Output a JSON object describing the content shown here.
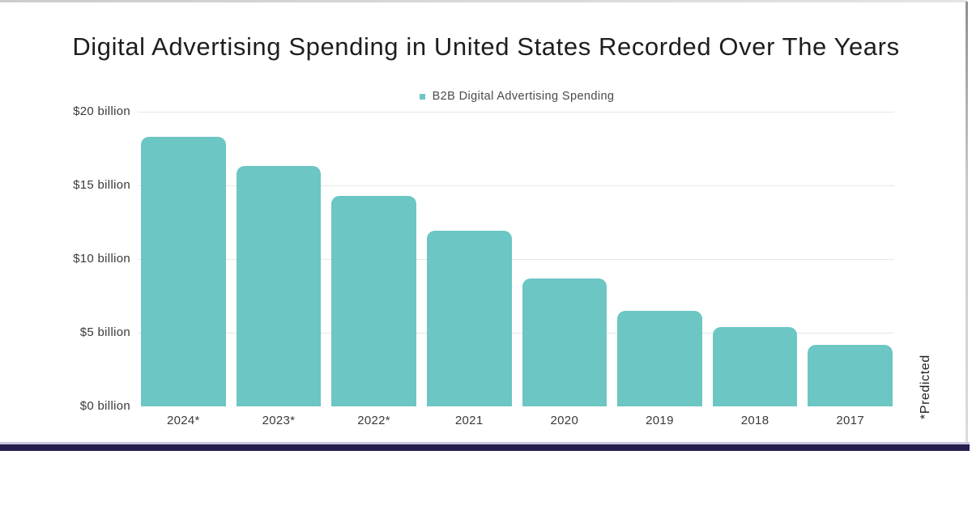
{
  "title": "Digital Advertising Spending in United States Recorded Over The Years",
  "legend": {
    "label": "B2B Digital Advertising Spending",
    "marker_color": "#6cc6c3"
  },
  "footnote": "*Predicted",
  "colors": {
    "bar": "#6cc6c3",
    "bottom_accent_bar": "#261e4e",
    "bottom_accent_top_edge": "#cbc6df",
    "gridline": "#e7e7e7",
    "title_text": "#1e1e1e",
    "axis_text": "#3a3a3a"
  },
  "chart_data": {
    "type": "bar",
    "title": "Digital Advertising Spending in United States Recorded Over The Years",
    "categories": [
      "2024*",
      "2023*",
      "2022*",
      "2021",
      "2020",
      "2019",
      "2018",
      "2017"
    ],
    "series": [
      {
        "name": "B2B Digital Advertising Spending",
        "values": [
          18.3,
          16.3,
          14.3,
          11.9,
          8.7,
          6.5,
          5.4,
          4.2
        ]
      }
    ],
    "unit": "USD billions",
    "xlabel": "",
    "ylabel": "",
    "ylim": [
      0,
      20
    ],
    "yticks": [
      {
        "value": 20,
        "label": "$20 billion"
      },
      {
        "value": 15,
        "label": "$15 billion"
      },
      {
        "value": 10,
        "label": "$10 billion"
      },
      {
        "value": 5,
        "label": "$5 billion"
      },
      {
        "value": 0,
        "label": "$0 billion"
      }
    ],
    "grid": true,
    "legend_position": "top-center",
    "bar_color": "#6cc6c3",
    "annotation": "*Predicted"
  }
}
